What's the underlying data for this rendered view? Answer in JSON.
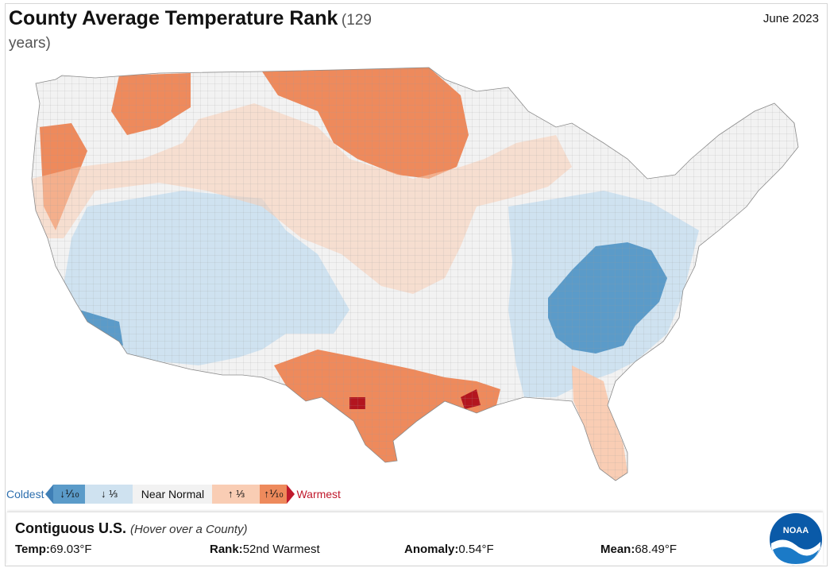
{
  "header": {
    "title": "County Average Temperature Rank",
    "title_suffix": "(129 years)",
    "date": "June 2023"
  },
  "legend": {
    "coldest_label": "Coldest",
    "warmest_label": "Warmest",
    "bins": [
      {
        "label": "↓⅒",
        "color": "#5b9bc9"
      },
      {
        "label": "↓ ⅓",
        "color": "#cfe2f0"
      },
      {
        "label": "Near Normal",
        "color": "#f2f2f2"
      },
      {
        "label": "↑ ⅓",
        "color": "#f9cdb4"
      },
      {
        "label": "↑⅒",
        "color": "#ee8a5c"
      }
    ],
    "record_cold_color": "#2e6fae",
    "record_warm_color": "#c0192c"
  },
  "info_panel": {
    "region": "Contiguous U.S.",
    "hint": "(Hover over a County)",
    "temp_label": "Temp:",
    "temp_value": "69.03°F",
    "rank_label": "Rank:",
    "rank_value": "52nd Warmest",
    "anomaly_label": "Anomaly:",
    "anomaly_value": "0.54°F",
    "mean_label": "Mean:",
    "mean_value": "68.49°F"
  },
  "logo_text": "NOAA",
  "icons": {
    "cold_arrow": "triangle-left-icon",
    "warm_arrow": "triangle-right-icon",
    "logo": "noaa-logo-icon"
  }
}
